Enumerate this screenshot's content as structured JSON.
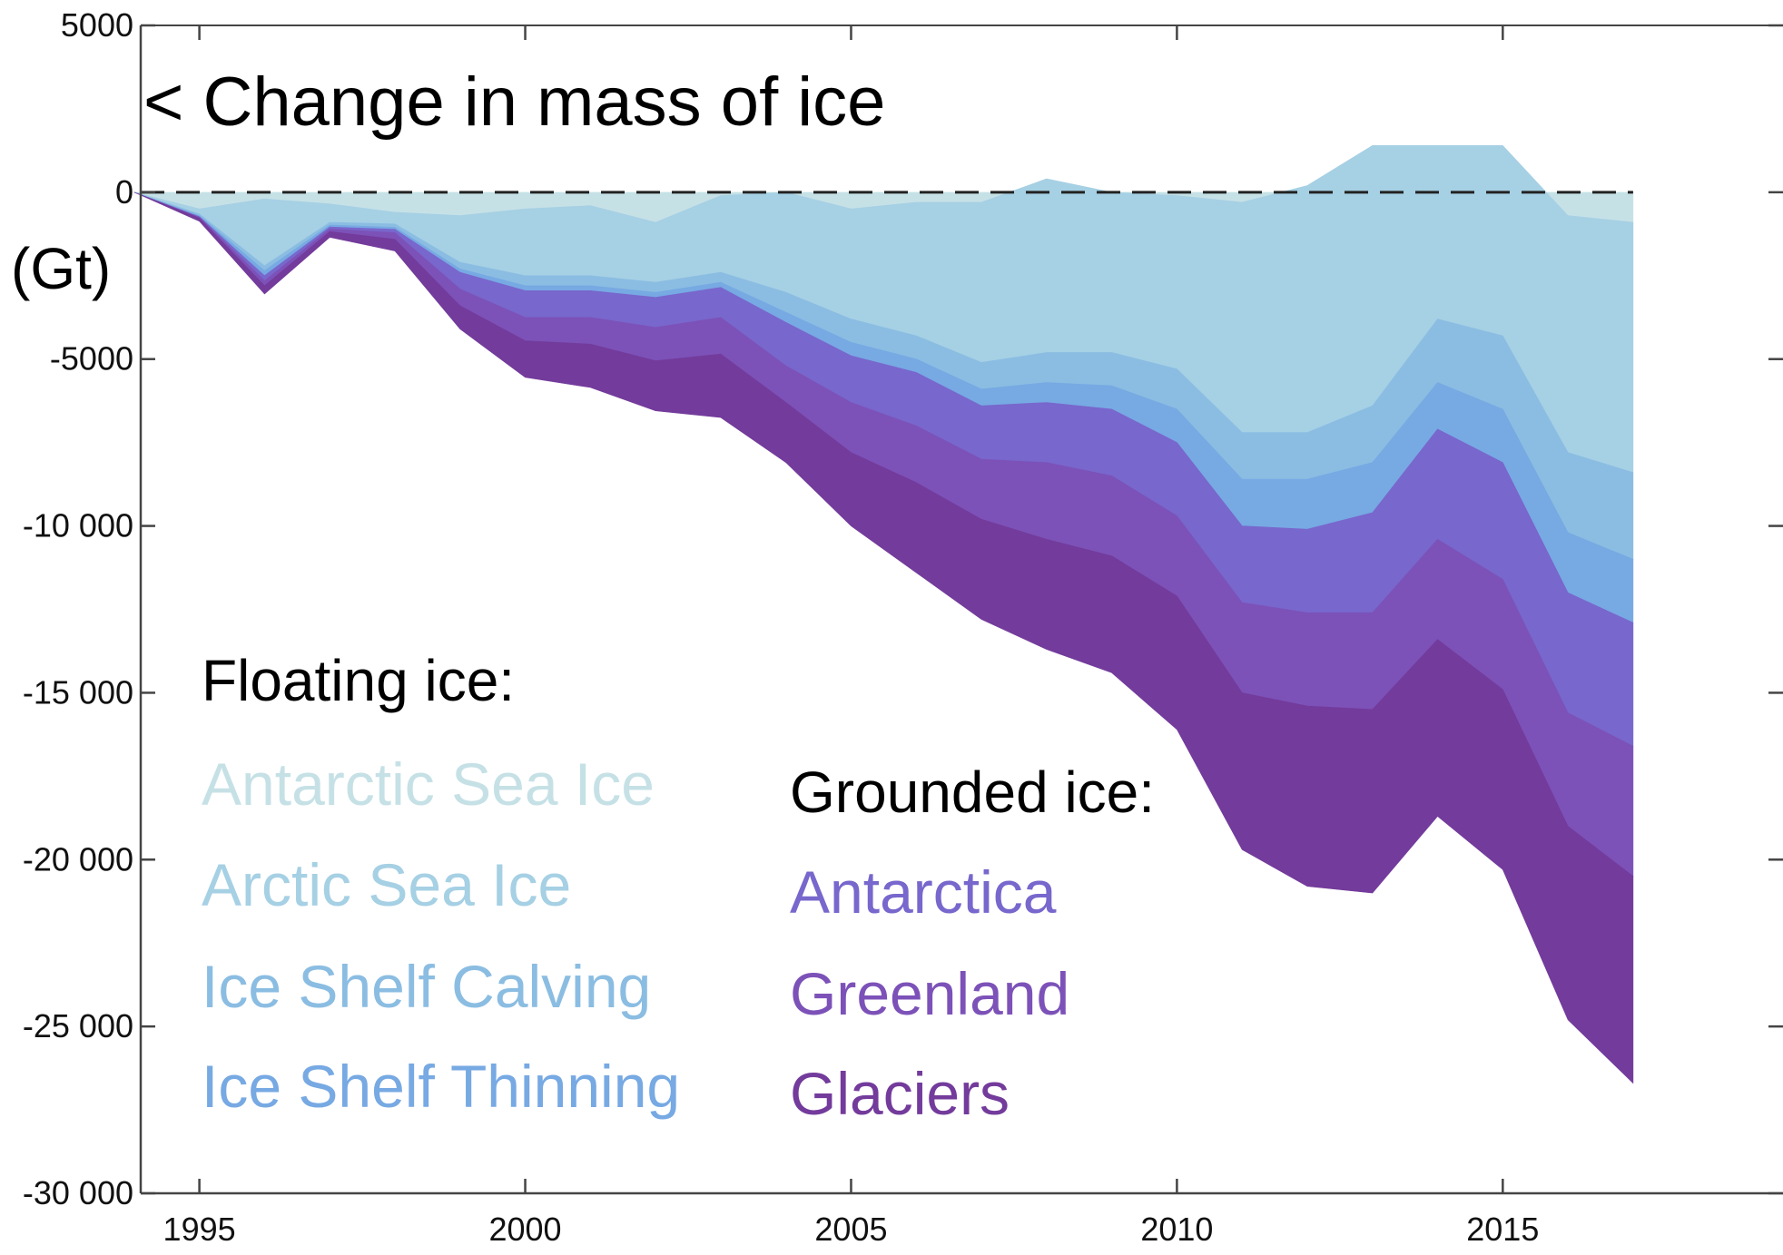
{
  "chart_data": {
    "type": "area",
    "stacked": true,
    "title": "< Change in mass of ice",
    "ylabel": "(Gt)",
    "xlabel": "",
    "xlim": [
      1994.1,
      2019.3
    ],
    "ylim": [
      -30000,
      5000
    ],
    "x_ticks": [
      1995,
      2000,
      2005,
      2010,
      2015
    ],
    "y_ticks": [
      5000,
      0,
      -5000,
      -10000,
      -15000,
      -20000,
      -25000,
      -30000
    ],
    "y_tick_labels": [
      "5000",
      "0",
      "-5000",
      "-10 000",
      "-15 000",
      "-20 000",
      "-25 000",
      "-30 000"
    ],
    "zero_line": "dashed",
    "grid": false,
    "x": [
      1994,
      1995,
      1996,
      1997,
      1998,
      1999,
      2000,
      2001,
      2002,
      2003,
      2004,
      2005,
      2006,
      2007,
      2008,
      2009,
      2010,
      2011,
      2012,
      2013,
      2014,
      2015,
      2016,
      2017
    ],
    "series": [
      {
        "name": "Antarctic Sea Ice",
        "group": "Floating ice",
        "color": "#c6e1e6",
        "values": [
          0,
          -500,
          -200,
          -350,
          -600,
          -700,
          -500,
          -400,
          -900,
          -100,
          0,
          -500,
          -300,
          -300,
          400,
          0,
          -100,
          -300,
          200,
          1400,
          1400,
          1400,
          -700,
          -900
        ]
      },
      {
        "name": "Arctic Sea Ice",
        "group": "Floating ice",
        "color": "#a6d0e4",
        "values": [
          0,
          -150,
          -2000,
          -550,
          -350,
          -1400,
          -2000,
          -2100,
          -1800,
          -2300,
          -3000,
          -3300,
          -4000,
          -4800,
          -5200,
          -4800,
          -5200,
          -6900,
          -7400,
          -7800,
          -5200,
          -5700,
          -7100,
          -7500
        ]
      },
      {
        "name": "Ice Shelf Calving",
        "group": "Floating ice",
        "color": "#8bbde2",
        "values": [
          0,
          -50,
          -150,
          -80,
          -100,
          -200,
          -300,
          -300,
          -300,
          -300,
          -600,
          -700,
          -700,
          -800,
          -900,
          -1000,
          -1200,
          -1400,
          -1400,
          -1700,
          -1900,
          -2200,
          -2400,
          -2600
        ]
      },
      {
        "name": "Ice Shelf Thinning",
        "group": "Floating ice",
        "color": "#77a9e3",
        "values": [
          0,
          -30,
          -150,
          -60,
          -60,
          -100,
          -150,
          -150,
          -150,
          -150,
          -300,
          -400,
          -400,
          -500,
          -600,
          -700,
          -1000,
          -1400,
          -1500,
          -1500,
          -1400,
          -1600,
          -1800,
          -1900
        ]
      },
      {
        "name": "Antarctica",
        "group": "Grounded ice",
        "color": "#7867cc",
        "values": [
          0,
          -20,
          -150,
          -60,
          -100,
          -500,
          -800,
          -800,
          -900,
          -900,
          -1300,
          -1400,
          -1600,
          -1600,
          -1800,
          -2000,
          -2200,
          -2300,
          -2500,
          -3000,
          -3300,
          -3500,
          -3600,
          -3700
        ]
      },
      {
        "name": "Greenland",
        "group": "Grounded ice",
        "color": "#7c52b8",
        "values": [
          0,
          -20,
          -150,
          -80,
          -200,
          -500,
          -700,
          -800,
          -1000,
          -1100,
          -1100,
          -1500,
          -1700,
          -1800,
          -2300,
          -2400,
          -2400,
          -2700,
          -2800,
          -2900,
          -3000,
          -3300,
          -3400,
          -3900
        ]
      },
      {
        "name": "Glaciers",
        "group": "Grounded ice",
        "color": "#733b9b",
        "values": [
          0,
          -100,
          -250,
          -170,
          -350,
          -700,
          -1100,
          -1300,
          -1500,
          -1900,
          -1800,
          -2200,
          -2700,
          -3000,
          -3300,
          -3500,
          -4000,
          -4700,
          -5400,
          -5500,
          -5300,
          -5400,
          -5800,
          -6200
        ]
      }
    ]
  },
  "legend": {
    "floating_heading": "Floating ice:",
    "grounded_heading": "Grounded ice:",
    "floating_items": [
      "Antarctic Sea Ice",
      "Arctic Sea Ice",
      "Ice Shelf Calving",
      "Ice Shelf Thinning"
    ],
    "grounded_items": [
      "Antarctica",
      "Greenland",
      "Glaciers"
    ],
    "floating_colors": [
      "#c6e1e6",
      "#a6d0e4",
      "#8bbde2",
      "#77a9e3"
    ],
    "grounded_colors": [
      "#7867cc",
      "#7c52b8",
      "#733b9b"
    ]
  }
}
